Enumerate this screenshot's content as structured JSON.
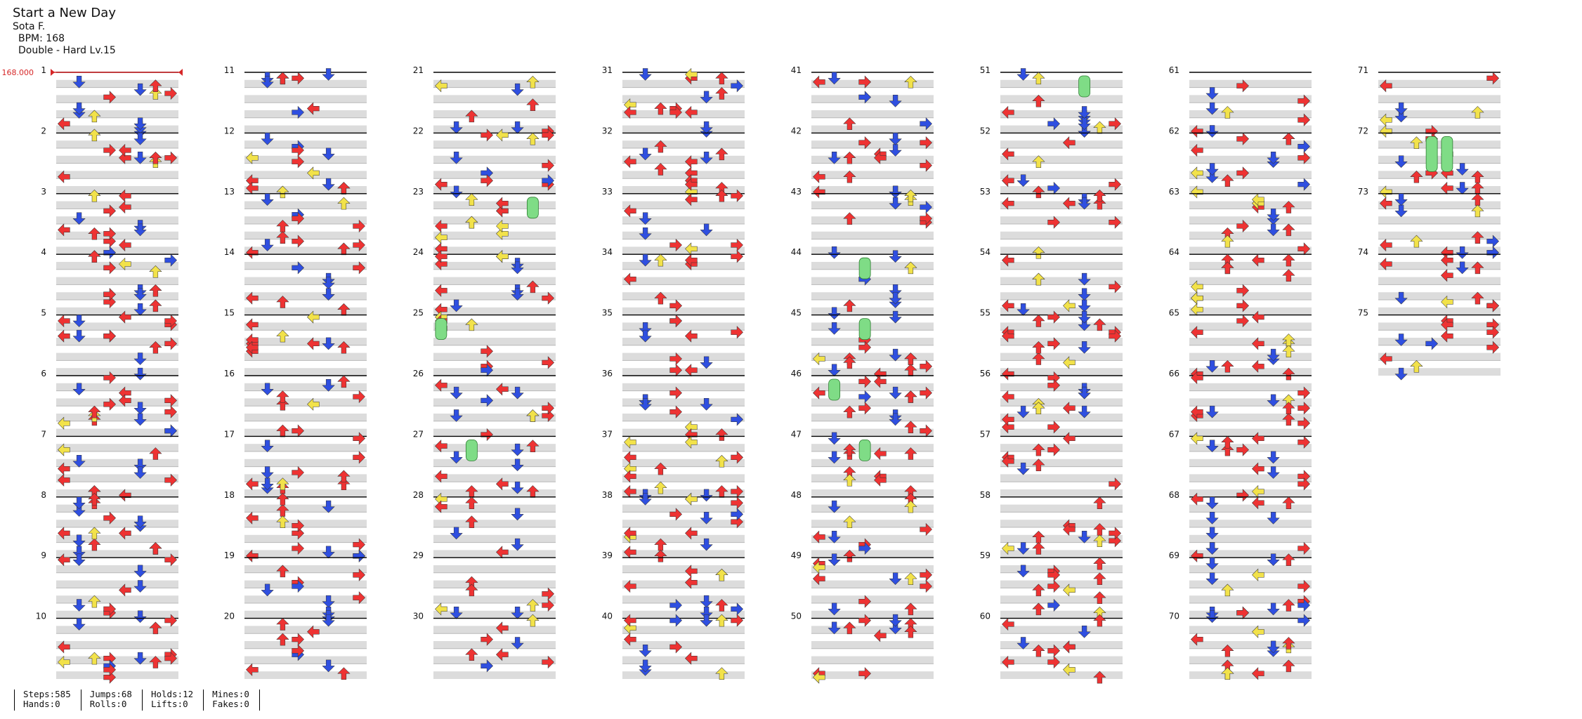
{
  "song": {
    "title": "Start a New Day",
    "artist": "Sota F.",
    "bpm_label": "BPM: 168",
    "difficulty_label": "Double - Hard  Lv.15"
  },
  "bpm_marker": "168.000",
  "total_measures": 75,
  "measures_per_column": 10,
  "colors": {
    "left": "#ee3333",
    "down": "#2f4fe0",
    "up": "#ee3333",
    "right": "#ee3333",
    "yellow": "#f2e24a",
    "hold": "#7fdc86",
    "stripe": "#dcdcdc",
    "bar_line": "#000000"
  },
  "stats": [
    {
      "line1": "Steps:585",
      "line2": "Hands:0"
    },
    {
      "line1": "Jumps:68",
      "line2": "Rolls:0"
    },
    {
      "line1": "Holds:12",
      "line2": "Lifts:0"
    },
    {
      "line1": "Mines:0",
      "line2": "Fakes:0"
    }
  ]
}
